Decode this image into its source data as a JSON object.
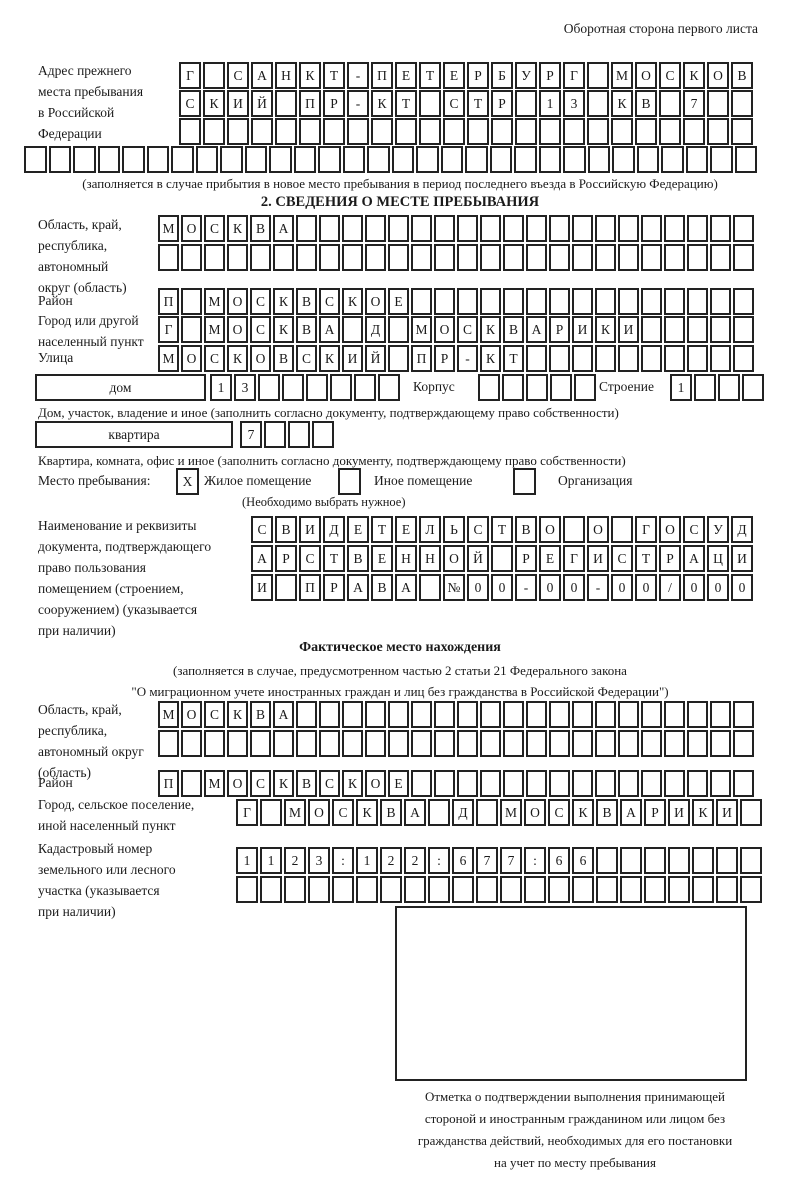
{
  "page": {
    "back_note": "Оборотная сторона первого листа"
  },
  "prev_address": {
    "label_lines": [
      "Адрес прежнего",
      "места пребывания",
      "в Российской",
      "Федерации"
    ],
    "row1": {
      "len": 24,
      "text": "Г САНКТ-ПЕТЕРБУРГ МОСКОВ"
    },
    "row2": {
      "len": 24,
      "text": "СКИЙ ПР-КТ СТР 13 КВ 7"
    },
    "row3": {
      "len": 24,
      "text": ""
    },
    "row4": {
      "len": 30,
      "text": ""
    },
    "note": "(заполняется в случае прибытия в новое место пребывания в период последнего въезда в Российскую Федерацию)"
  },
  "section2": {
    "title": "2. СВЕДЕНИЯ О МЕСТЕ ПРЕБЫВАНИЯ",
    "oblast": {
      "label_lines": [
        "Область, край,",
        "республика,",
        "автономный",
        "округ (область)"
      ],
      "row1": {
        "len": 26,
        "text": "МОСКВА"
      },
      "row2": {
        "len": 26,
        "text": ""
      }
    },
    "raion": {
      "label": "Район",
      "row": {
        "len": 26,
        "text": "П МОСКВСКОЕ"
      }
    },
    "gorod": {
      "label_lines": [
        "Город или другой",
        "населенный пункт"
      ],
      "row": {
        "len": 26,
        "text": "Г МОСКВА Д МОСКВАРИКИ"
      }
    },
    "ulitsa": {
      "label": "Улица",
      "row": {
        "len": 26,
        "text": "МОСКОВСКИЙ ПР-КТ"
      }
    },
    "dom": {
      "box_label": "дом",
      "cells": {
        "len": 8,
        "text": "13"
      },
      "korpus_label": "Корпус",
      "korpus_cells": {
        "len": 5,
        "text": ""
      },
      "stroenie_label": "Строение",
      "stroenie_cells": {
        "len": 4,
        "text": "1"
      },
      "caption": "Дом, участок, владение и иное (заполнить согласно документу, подтверждающему право собственности)"
    },
    "kvartira": {
      "box_label": "квартира",
      "cells": {
        "len": 4,
        "text": "7"
      },
      "caption": "Квартира, комната, офис и иное (заполнить согласно документу, подтверждающему право собственности)"
    },
    "mesto": {
      "label": "Место пребывания:",
      "options": [
        {
          "label": "Жилое помещение",
          "mark": "X"
        },
        {
          "label": "Иное помещение",
          "mark": ""
        },
        {
          "label": "Организация",
          "mark": ""
        }
      ],
      "note": "(Необходимо выбрать нужное)"
    },
    "doc": {
      "label_lines": [
        "Наименование и реквизиты",
        "документа, подтверждающего",
        "право пользования",
        "помещением (строением,",
        "сооружением) (указывается",
        "при наличии)"
      ],
      "row1": {
        "len": 21,
        "text": "СВИДЕТЕЛЬСТВО О ГОСУД"
      },
      "row2": {
        "len": 21,
        "text": "АРСТВЕННОЙ РЕГИСТРАЦИ"
      },
      "row3": {
        "len": 21,
        "text": "И ПРАВА №00-00-00/000"
      }
    }
  },
  "fact": {
    "title": "Фактическое место нахождения",
    "note_line1": "(заполняется в случае, предусмотренном частью 2 статьи 21 Федерального закона",
    "note_line2": "\"О миграционном учете иностранных граждан и лиц без гражданства в Российской Федерации\")",
    "oblast": {
      "label_lines": [
        "Область, край,",
        "республика,",
        "автономный округ",
        "(область)"
      ],
      "row1": {
        "len": 26,
        "text": "МОСКВА"
      },
      "row2": {
        "len": 26,
        "text": ""
      }
    },
    "raion": {
      "label": "Район",
      "row": {
        "len": 26,
        "text": "П МОСКВСКОЕ"
      }
    },
    "gorod": {
      "label_lines": [
        "Город, сельское поселение,",
        "иной населенный пункт"
      ],
      "row": {
        "len": 22,
        "text": "Г МОСКВА Д МОСКВАРИКИ"
      }
    },
    "kadastr": {
      "label_lines": [
        "Кадастровый номер",
        "земельного или лесного",
        "участка (указывается",
        "при наличии)"
      ],
      "row1": {
        "len": 22,
        "text": "1123:122:677:66"
      },
      "row2": {
        "len": 22,
        "text": ""
      }
    },
    "stamp_caption_lines": [
      "Отметка о подтверждении выполнения принимающей",
      "стороной и иностранным гражданином или лицом без",
      "гражданства действий, необходимых для его постановки",
      "на учет по месту пребывания"
    ]
  }
}
